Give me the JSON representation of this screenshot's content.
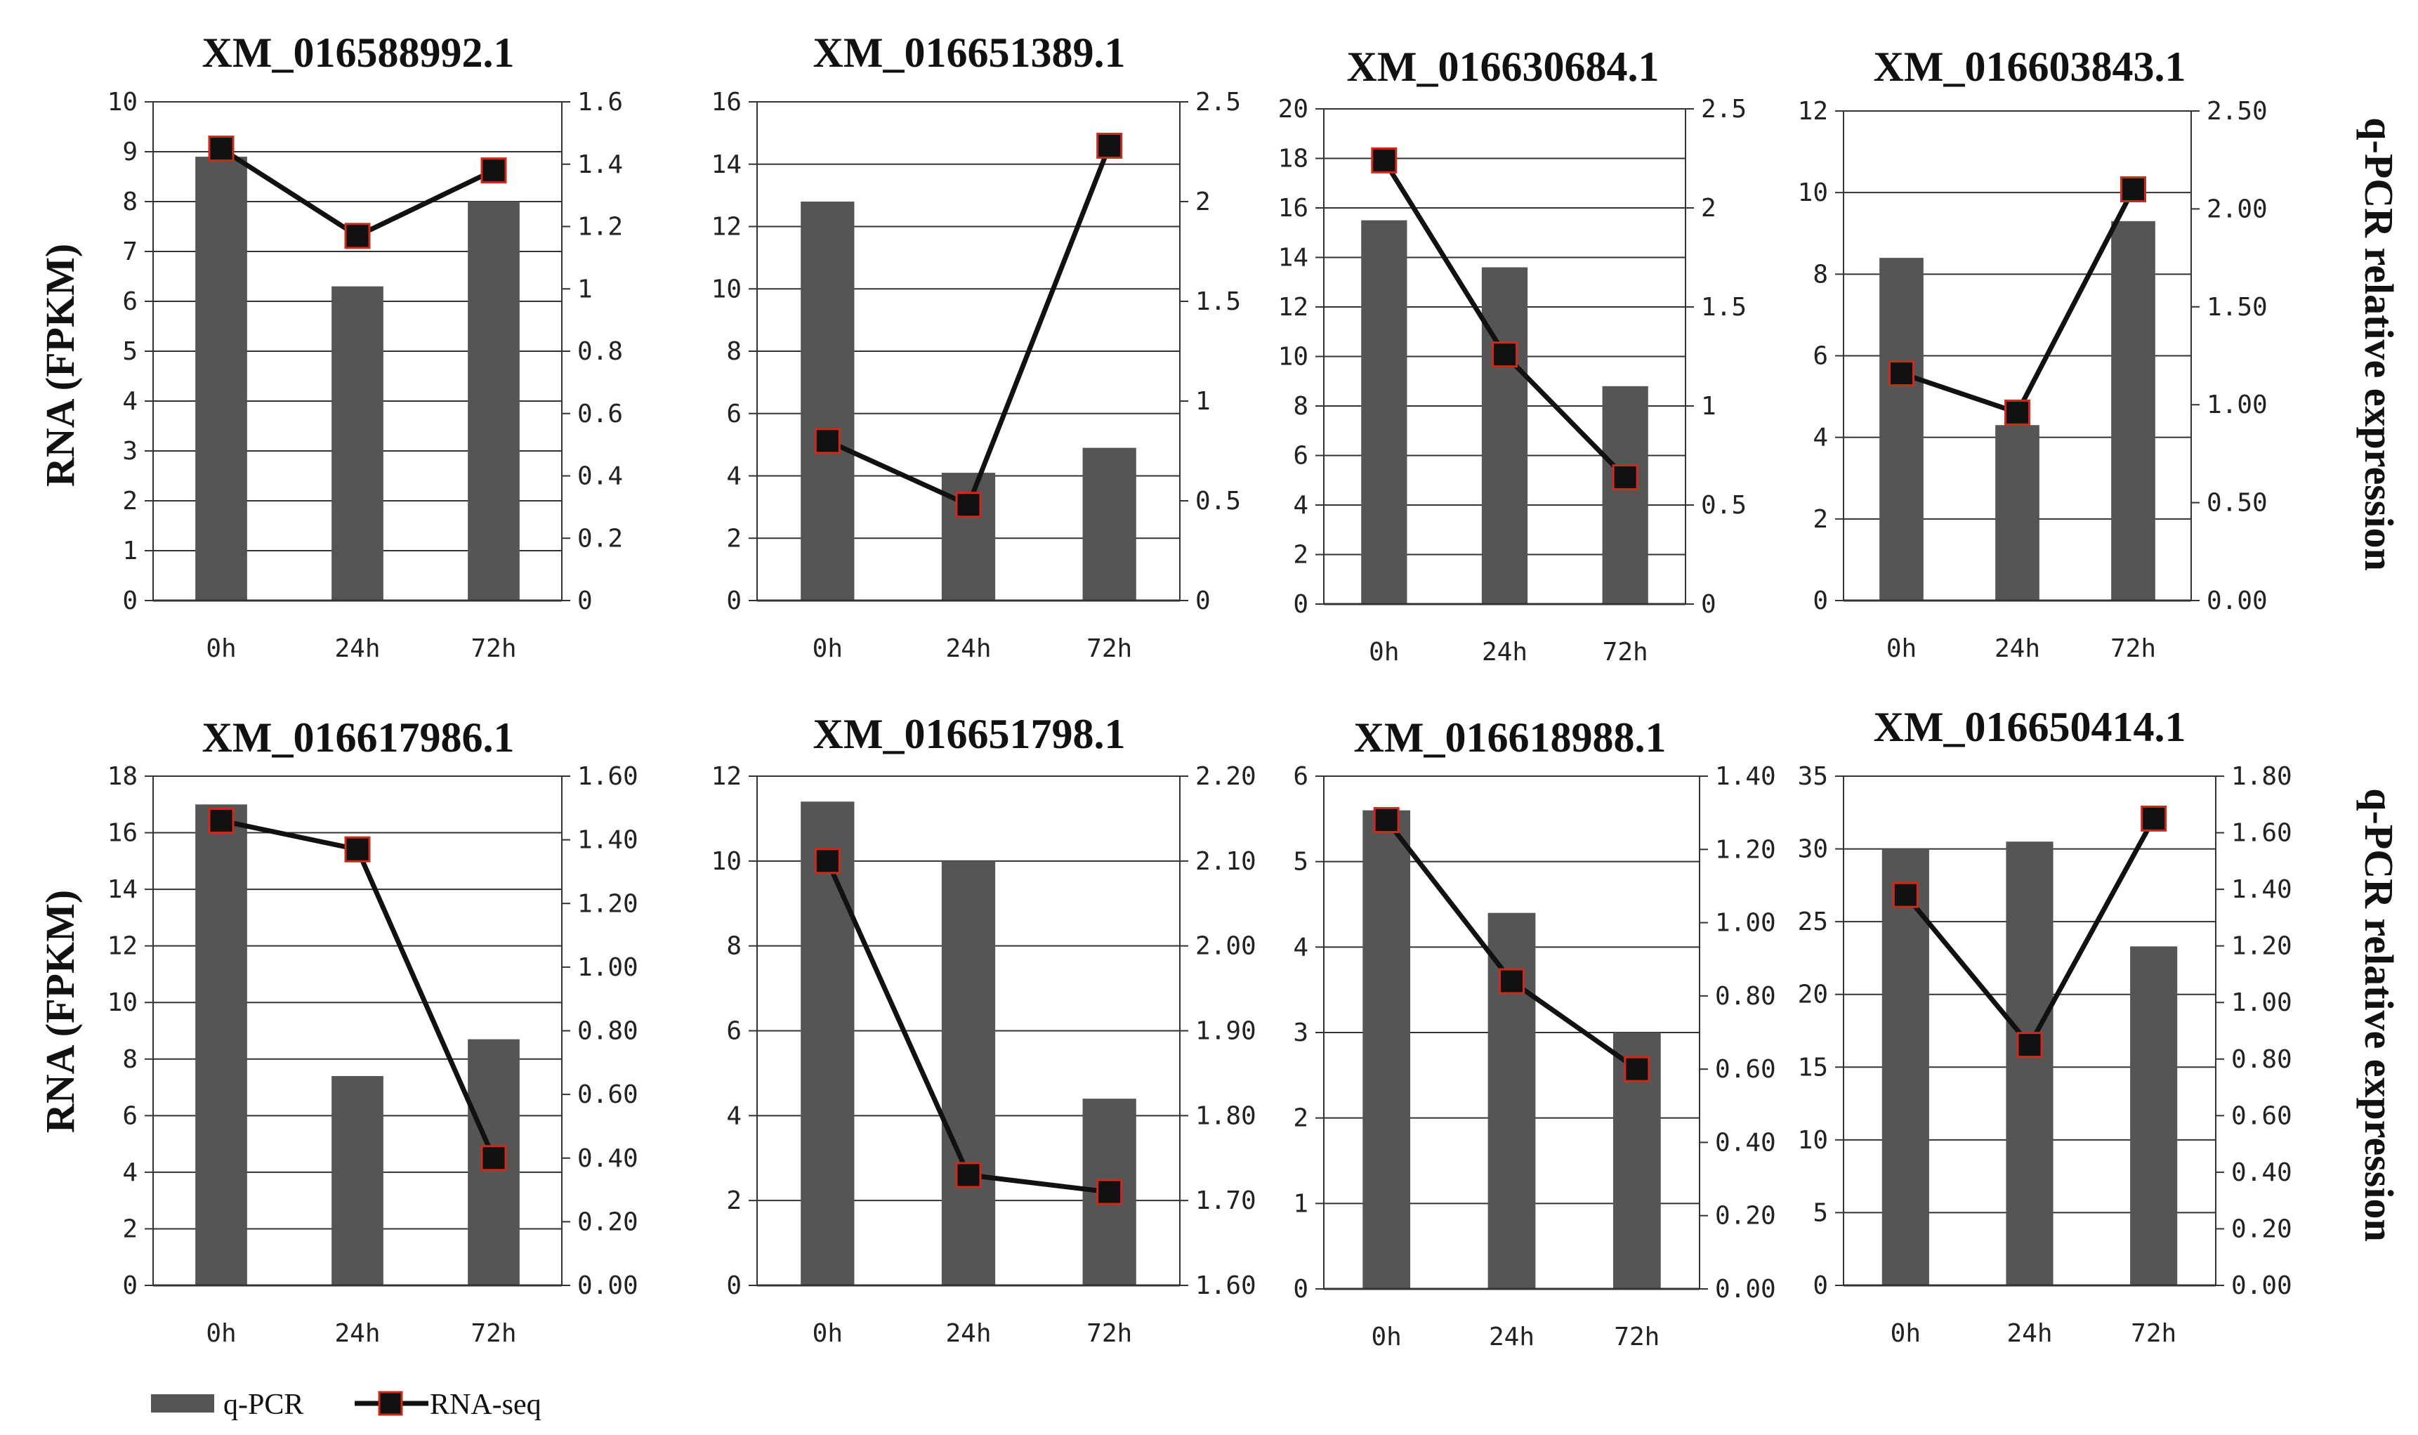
{
  "figure": {
    "left_axis_title": "RNA (FPKM)",
    "right_axis_title": "q-PCR relative expression",
    "legend": {
      "bar_label": "q-PCR",
      "line_label": "RNA-seq"
    },
    "colors": {
      "bar": "#555555",
      "line": "#111111",
      "marker_fill": "#111111",
      "marker_edge": "#cc2a1a",
      "grid": "#333333"
    }
  },
  "chart_data": [
    {
      "type": "bar",
      "title": "XM_016588992.1",
      "categories": [
        "0h",
        "24h",
        "72h"
      ],
      "series": [
        {
          "name": "q-PCR",
          "values": [
            8.9,
            6.3,
            8.0
          ]
        },
        {
          "name": "RNA-seq",
          "values": [
            1.45,
            1.17,
            1.38
          ]
        }
      ],
      "left_ticks": [
        "0",
        "1",
        "2",
        "3",
        "4",
        "5",
        "6",
        "7",
        "8",
        "9",
        "10"
      ],
      "left_ylim": [
        0,
        10
      ],
      "right_ticks": [
        "0",
        "0.2",
        "0.4",
        "0.6",
        "0.8",
        "1",
        "1.2",
        "1.4",
        "1.6"
      ],
      "right_ylim": [
        0,
        1.6
      ]
    },
    {
      "type": "bar",
      "title": "XM_016651389.1",
      "categories": [
        "0h",
        "24h",
        "72h"
      ],
      "series": [
        {
          "name": "q-PCR",
          "values": [
            12.8,
            4.1,
            4.9
          ]
        },
        {
          "name": "RNA-seq",
          "values": [
            0.8,
            0.48,
            2.28
          ]
        }
      ],
      "left_ticks": [
        "0",
        "2",
        "4",
        "6",
        "8",
        "10",
        "12",
        "14",
        "16"
      ],
      "left_ylim": [
        0,
        16
      ],
      "right_ticks": [
        "0",
        "0.5",
        "1",
        "1.5",
        "2",
        "2.5"
      ],
      "right_ylim": [
        0,
        2.5
      ]
    },
    {
      "type": "bar",
      "title": "XM_016630684.1",
      "categories": [
        "0h",
        "24h",
        "72h"
      ],
      "series": [
        {
          "name": "q-PCR",
          "values": [
            15.5,
            13.6,
            8.8
          ]
        },
        {
          "name": "RNA-seq",
          "values": [
            2.24,
            1.26,
            0.64
          ]
        }
      ],
      "left_ticks": [
        "0",
        "2",
        "4",
        "6",
        "8",
        "10",
        "12",
        "14",
        "16",
        "18",
        "20"
      ],
      "left_ylim": [
        0,
        20
      ],
      "right_ticks": [
        "0",
        "0.5",
        "1",
        "1.5",
        "2",
        "2.5"
      ],
      "right_ylim": [
        0,
        2.5
      ]
    },
    {
      "type": "bar",
      "title": "XM_016603843.1",
      "categories": [
        "0h",
        "24h",
        "72h"
      ],
      "series": [
        {
          "name": "q-PCR",
          "values": [
            8.4,
            4.3,
            9.3
          ]
        },
        {
          "name": "RNA-seq",
          "values": [
            1.16,
            0.96,
            2.1
          ]
        }
      ],
      "left_ticks": [
        "0",
        "2",
        "4",
        "6",
        "8",
        "10",
        "12"
      ],
      "left_ylim": [
        0,
        12
      ],
      "right_ticks": [
        "0.00",
        "0.50",
        "1.00",
        "1.50",
        "2.00",
        "2.50"
      ],
      "right_ylim": [
        0,
        2.5
      ]
    },
    {
      "type": "bar",
      "title": "XM_016617986.1",
      "categories": [
        "0h",
        "24h",
        "72h"
      ],
      "series": [
        {
          "name": "q-PCR",
          "values": [
            17.0,
            7.4,
            8.7
          ]
        },
        {
          "name": "RNA-seq",
          "values": [
            1.46,
            1.37,
            0.4
          ]
        }
      ],
      "left_ticks": [
        "0",
        "2",
        "4",
        "6",
        "8",
        "10",
        "12",
        "14",
        "16",
        "18"
      ],
      "left_ylim": [
        0,
        18
      ],
      "right_ticks": [
        "0.00",
        "0.20",
        "0.40",
        "0.60",
        "0.80",
        "1.00",
        "1.20",
        "1.40",
        "1.60"
      ],
      "right_ylim": [
        0,
        1.6
      ]
    },
    {
      "type": "bar",
      "title": "XM_016651798.1",
      "categories": [
        "0h",
        "24h",
        "72h"
      ],
      "series": [
        {
          "name": "q-PCR",
          "values": [
            11.4,
            10.0,
            4.4
          ]
        },
        {
          "name": "RNA-seq",
          "values": [
            2.1,
            1.73,
            1.71
          ]
        }
      ],
      "left_ticks": [
        "0",
        "2",
        "4",
        "6",
        "8",
        "10",
        "12"
      ],
      "left_ylim": [
        0,
        12
      ],
      "right_ticks": [
        "1.60",
        "1.70",
        "1.80",
        "1.90",
        "2.00",
        "2.10",
        "2.20"
      ],
      "right_ylim": [
        1.6,
        2.2
      ]
    },
    {
      "type": "bar",
      "title": "XM_016618988.1",
      "categories": [
        "0h",
        "24h",
        "72h"
      ],
      "series": [
        {
          "name": "q-PCR",
          "values": [
            5.6,
            4.4,
            3.0
          ]
        },
        {
          "name": "RNA-seq",
          "values": [
            1.28,
            0.84,
            0.6
          ]
        }
      ],
      "left_ticks": [
        "0",
        "1",
        "2",
        "3",
        "4",
        "5",
        "6"
      ],
      "left_ylim": [
        0,
        6
      ],
      "right_ticks": [
        "0.00",
        "0.20",
        "0.40",
        "0.60",
        "0.80",
        "1.00",
        "1.20",
        "1.40"
      ],
      "right_ylim": [
        0,
        1.4
      ]
    },
    {
      "type": "bar",
      "title": "XM_016650414.1",
      "categories": [
        "0h",
        "24h",
        "72h"
      ],
      "series": [
        {
          "name": "q-PCR",
          "values": [
            30.0,
            30.5,
            23.3
          ]
        },
        {
          "name": "RNA-seq",
          "values": [
            1.38,
            0.85,
            1.65
          ]
        }
      ],
      "left_ticks": [
        "0",
        "5",
        "10",
        "15",
        "20",
        "25",
        "30",
        "35"
      ],
      "left_ylim": [
        0,
        35
      ],
      "right_ticks": [
        "0.00",
        "0.20",
        "0.40",
        "0.60",
        "0.80",
        "1.00",
        "1.20",
        "1.40",
        "1.60",
        "1.80"
      ],
      "right_ylim": [
        0,
        1.8
      ]
    }
  ]
}
